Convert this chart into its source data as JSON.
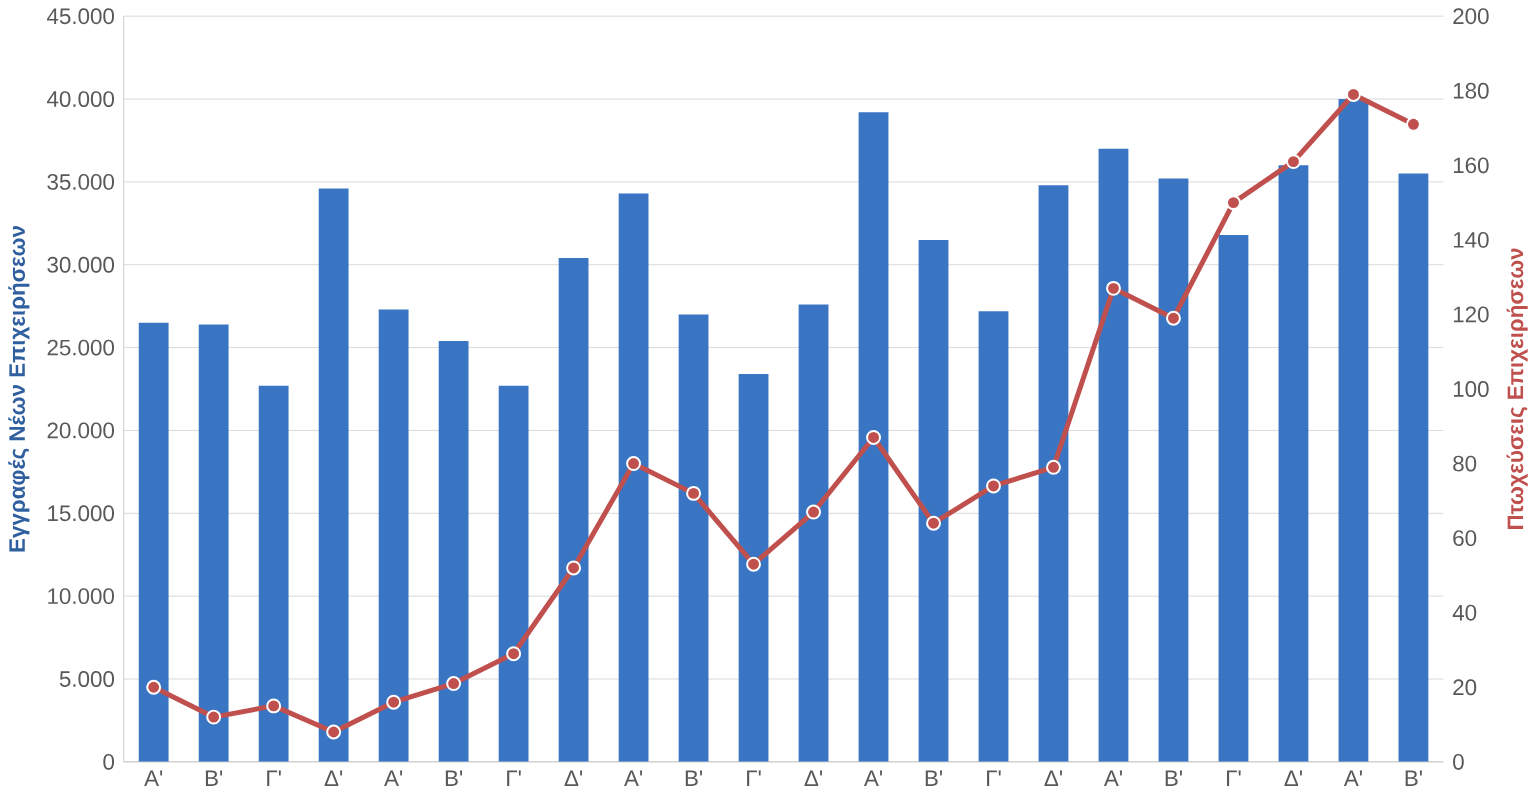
{
  "chart_data": {
    "type": "bar",
    "ylabel": "Εγγραφές Νέων Επιχειρήσεων",
    "y2label": "Πτωχεύσεις Επιχειρήσεων",
    "categories": [
      "Α'",
      "Β'",
      "Γ'",
      "Δ'",
      "Α'",
      "Β'",
      "Γ'",
      "Δ'",
      "Α'",
      "Β'",
      "Γ'",
      "Δ'",
      "Α'",
      "Β'",
      "Γ'",
      "Δ'",
      "Α'",
      "Β'",
      "Γ'",
      "Δ'",
      "Α'",
      "Β'"
    ],
    "series": [
      {
        "color": "#3a75c4",
        "values": [
          26500,
          26400,
          22700,
          34600,
          27300,
          25400,
          22700,
          30400,
          34300,
          27000,
          23400,
          27600,
          39200,
          31500,
          27200,
          34800,
          37000,
          35200,
          31800,
          36000,
          40000,
          35500
        ]
      },
      {
        "type": "line",
        "axis": "y2",
        "color": "#c0504d",
        "marker": "circle",
        "values": [
          20,
          12,
          15,
          8,
          16,
          21,
          29,
          52,
          80,
          72,
          53,
          67,
          87,
          64,
          74,
          79,
          127,
          119,
          150,
          161,
          179,
          171
        ]
      }
    ],
    "ylim": [
      0,
      45000
    ],
    "yticks": [
      0,
      {
        "value": 5000,
        "label": "5.000"
      },
      {
        "value": 10000,
        "label": "10.000"
      },
      {
        "value": 15000,
        "label": "15.000"
      },
      {
        "value": 20000,
        "label": "20.000"
      },
      {
        "value": 25000,
        "label": "25.000"
      },
      {
        "value": 30000,
        "label": "30.000"
      },
      {
        "value": 35000,
        "label": "35.000"
      },
      {
        "value": 40000,
        "label": "40.000"
      },
      {
        "value": 45000,
        "label": "45.000"
      }
    ],
    "y2lim": [
      0,
      200
    ],
    "y2ticks": [
      0,
      20,
      40,
      60,
      80,
      100,
      120,
      140,
      160,
      180,
      200
    ],
    "grid": "y",
    "legend": false
  }
}
